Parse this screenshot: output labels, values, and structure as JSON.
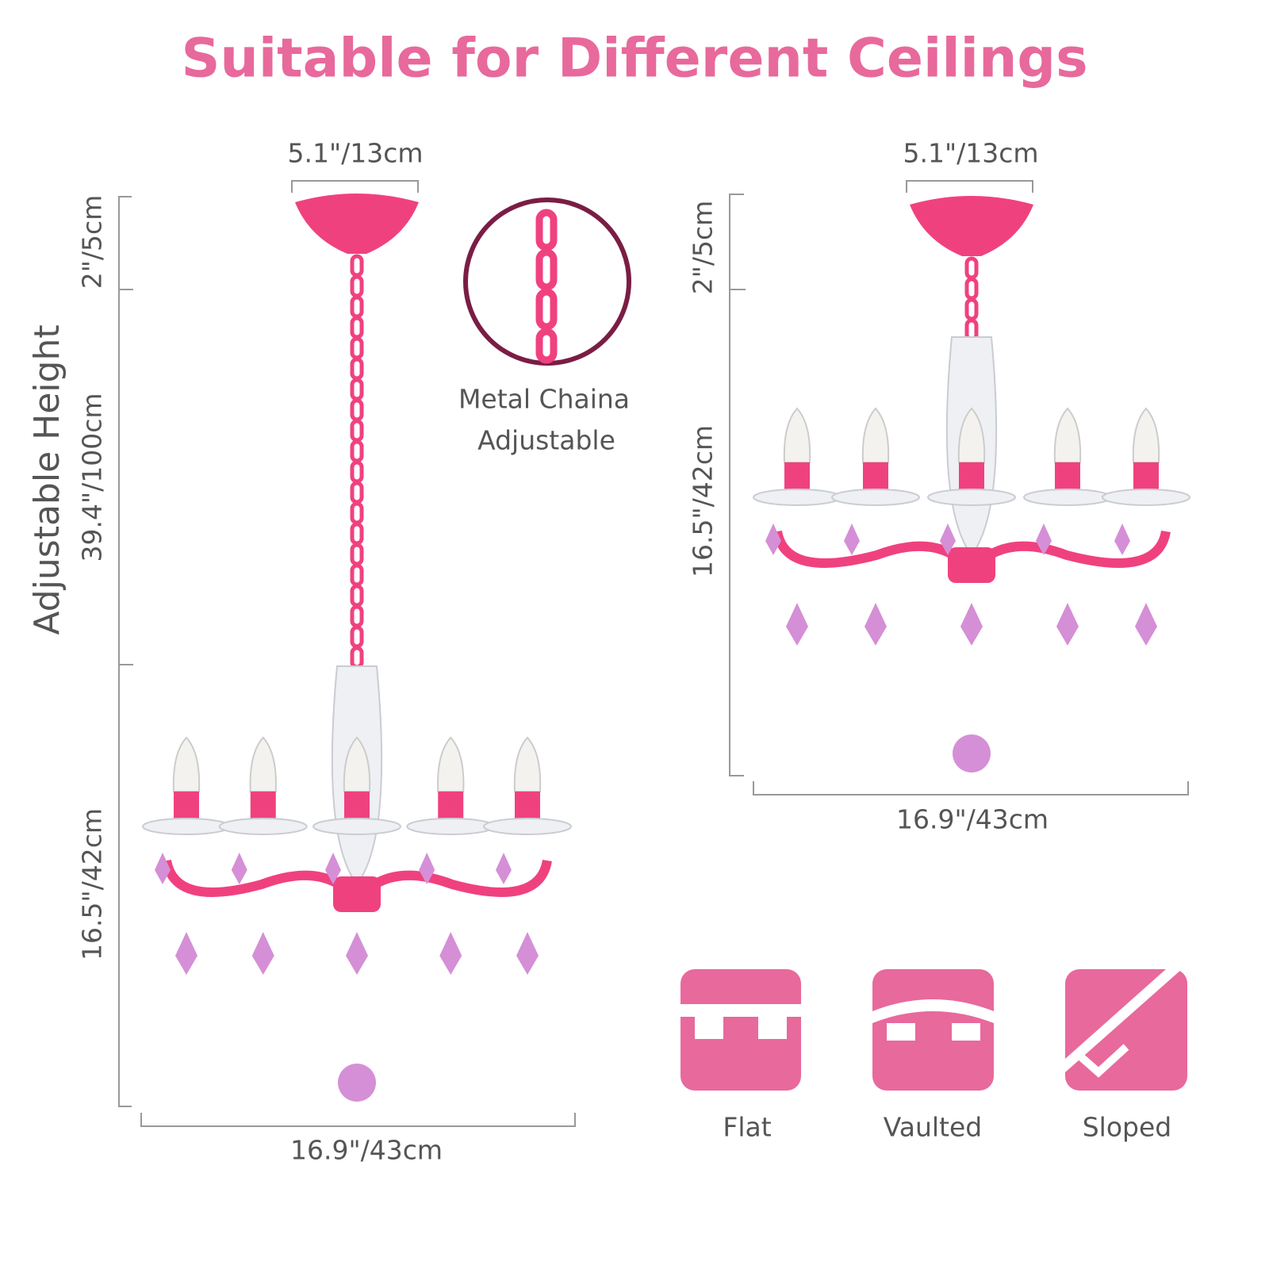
{
  "header": {
    "title": "Suitable for Different Ceilings"
  },
  "left": {
    "side_label": "Adjustable Height",
    "top_width": "5.1\"/13cm",
    "canopy_height": "2\"/5cm",
    "chain_length": "39.4\"/100cm",
    "body_height": "16.5\"/42cm",
    "bottom_width": "16.9\"/43cm"
  },
  "inset": {
    "lines": [
      "Metal Chaina",
      "Adjustable"
    ]
  },
  "right": {
    "top_width": "5.1\"/13cm",
    "canopy_height": "2\"/5cm",
    "body_height": "16.5\"/42cm",
    "bottom_width": "16.9\"/43cm"
  },
  "ceilings": [
    "Flat",
    "Vaulted",
    "Sloped"
  ]
}
